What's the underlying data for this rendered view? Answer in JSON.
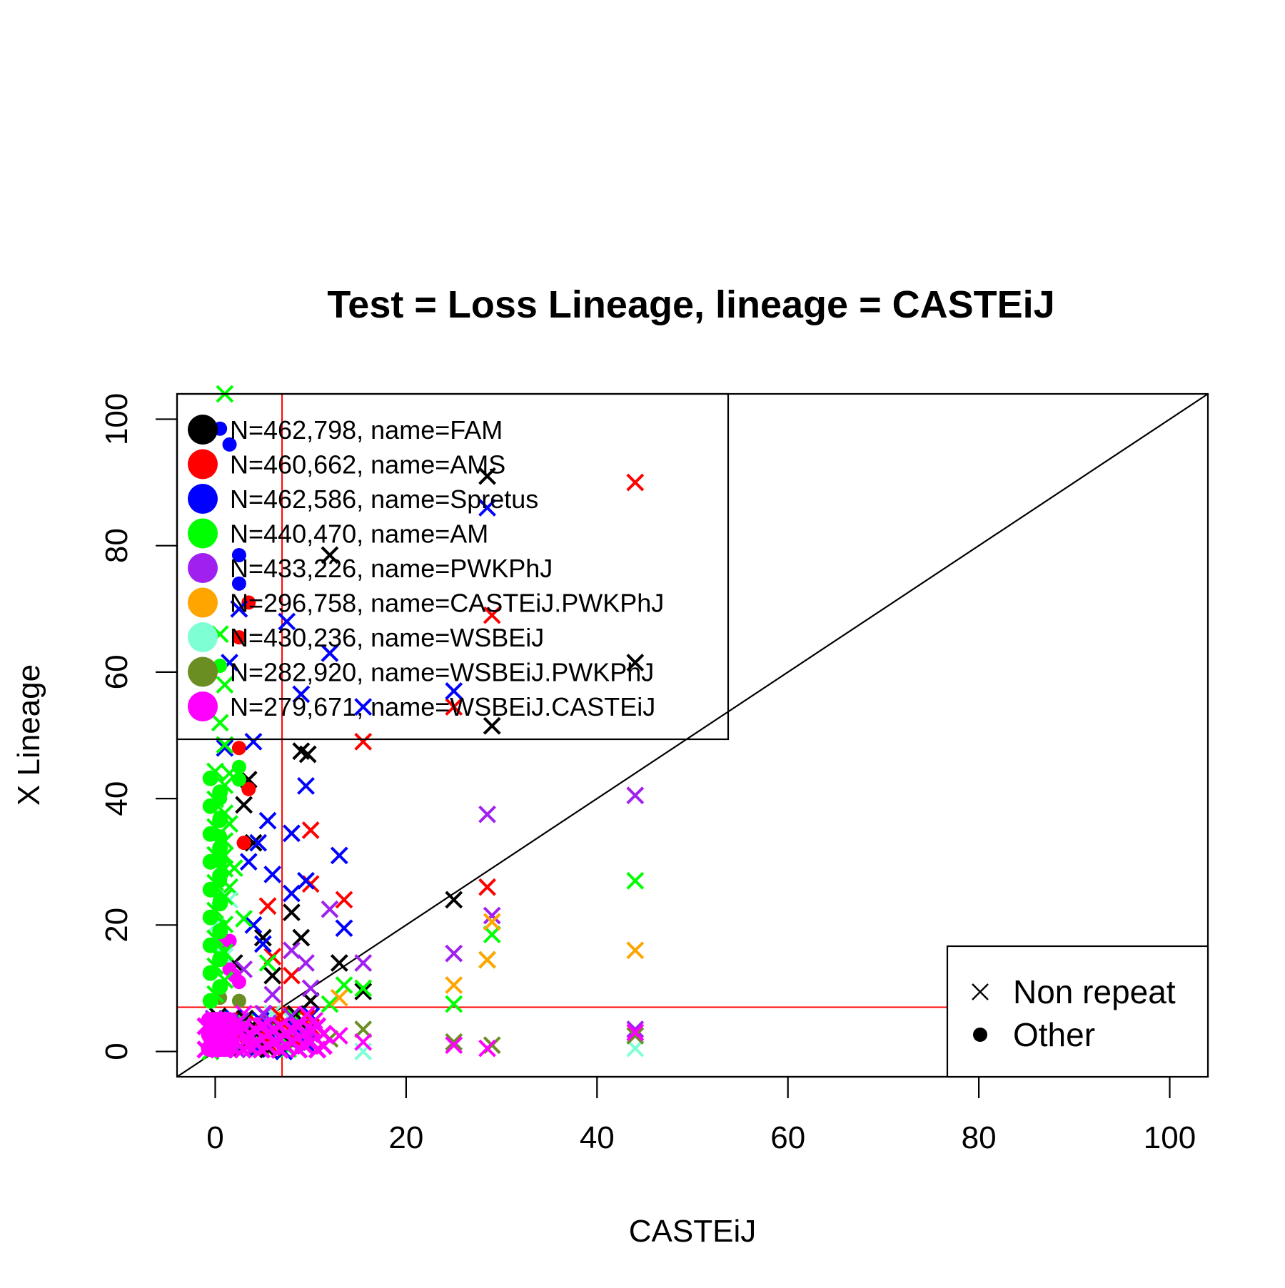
{
  "chart_data": {
    "type": "scatter",
    "title": "Test = Loss Lineage, lineage = CASTEiJ",
    "xlabel": "CASTEiJ",
    "ylabel": "X Lineage",
    "xlim": [
      -4,
      104
    ],
    "ylim": [
      -4,
      104
    ],
    "x_ticks": [
      0,
      20,
      40,
      60,
      80,
      100
    ],
    "y_ticks": [
      0,
      20,
      40,
      60,
      80,
      100
    ],
    "x_tick_labels": [
      "0",
      "20",
      "40",
      "60",
      "80",
      "100"
    ],
    "y_tick_labels": [
      "0",
      "20",
      "40",
      "60",
      "80",
      "100"
    ],
    "grid": false,
    "reference_lines": [
      {
        "kind": "diagonal",
        "intercept": 0,
        "slope": 1,
        "color": "#000000"
      },
      {
        "kind": "vertical",
        "x": 7,
        "color": "#ff0000"
      },
      {
        "kind": "horizontal",
        "y": 7,
        "color": "#ff0000"
      }
    ],
    "legend": {
      "placement": "top-left",
      "entries": [
        {
          "label": "N=462,798, name=FAM",
          "color": "#000000"
        },
        {
          "label": "N=460,662, name=AMS",
          "color": "#ff0000"
        },
        {
          "label": "N=462,586, name=Spretus",
          "color": "#0000ff"
        },
        {
          "label": "N=440,470, name=AM",
          "color": "#00ff00"
        },
        {
          "label": "N=433,226, name=PWKPhJ",
          "color": "#a020f0"
        },
        {
          "label": "N=296,758, name=CASTEiJ.PWKPhJ",
          "color": "#ffa500"
        },
        {
          "label": "N=430,236, name=WSBEiJ",
          "color": "#7fffd4"
        },
        {
          "label": "N=282,920, name=WSBEiJ.PWKPhJ",
          "color": "#6b8e23"
        },
        {
          "label": "N=279,671, name=WSBEiJ.CASTEiJ",
          "color": "#ff00ff"
        }
      ]
    },
    "shape_legend": {
      "placement": "bottom-right",
      "entries": [
        {
          "label": "Non repeat",
          "marker": "cross"
        },
        {
          "label": "Other",
          "marker": "dot"
        }
      ]
    },
    "series": [
      {
        "color": "#000000",
        "points": [
          {
            "x": 28.5,
            "y": 91,
            "m": "x"
          },
          {
            "x": 12,
            "y": 78.5,
            "m": "x"
          },
          {
            "x": 44,
            "y": 61.5,
            "m": "x"
          },
          {
            "x": 29,
            "y": 51.5,
            "m": "x"
          },
          {
            "x": 9,
            "y": 47.5,
            "m": "x"
          },
          {
            "x": 9.7,
            "y": 47,
            "m": "x"
          },
          {
            "x": 3,
            "y": 39,
            "m": "x"
          },
          {
            "x": 3.5,
            "y": 43,
            "m": "x"
          },
          {
            "x": 25,
            "y": 24,
            "m": "x"
          },
          {
            "x": 8,
            "y": 22,
            "m": "x"
          },
          {
            "x": 9,
            "y": 18,
            "m": "x"
          },
          {
            "x": 13,
            "y": 14,
            "m": "x"
          },
          {
            "x": 15.5,
            "y": 9.5,
            "m": "x"
          },
          {
            "x": 4,
            "y": 33,
            "m": "x"
          },
          {
            "x": 5,
            "y": 18,
            "m": "x"
          },
          {
            "x": 6,
            "y": 12,
            "m": "x"
          },
          {
            "x": 10,
            "y": 8,
            "m": "x"
          },
          {
            "x": 2,
            "y": 14,
            "m": "x"
          }
        ]
      },
      {
        "color": "#ff0000",
        "points": [
          {
            "x": 44,
            "y": 90,
            "m": "x"
          },
          {
            "x": 29,
            "y": 69,
            "m": "x"
          },
          {
            "x": 25,
            "y": 54.5,
            "m": "x"
          },
          {
            "x": 15.5,
            "y": 49,
            "m": "x"
          },
          {
            "x": 10,
            "y": 35,
            "m": "x"
          },
          {
            "x": 10,
            "y": 26.5,
            "m": "x"
          },
          {
            "x": 13.5,
            "y": 24,
            "m": "x"
          },
          {
            "x": 28.5,
            "y": 26,
            "m": "x"
          },
          {
            "x": 5.5,
            "y": 23,
            "m": "x"
          },
          {
            "x": 3.5,
            "y": 71,
            "m": "o"
          },
          {
            "x": 2.5,
            "y": 65.5,
            "m": "o"
          },
          {
            "x": 2.5,
            "y": 48,
            "m": "o"
          },
          {
            "x": 3.5,
            "y": 41.5,
            "m": "o"
          },
          {
            "x": 3,
            "y": 33,
            "m": "o"
          },
          {
            "x": 8,
            "y": 12,
            "m": "x"
          },
          {
            "x": 6,
            "y": 15,
            "m": "x"
          }
        ]
      },
      {
        "color": "#0000ff",
        "points": [
          {
            "x": 28.5,
            "y": 86,
            "m": "x"
          },
          {
            "x": 12,
            "y": 63,
            "m": "x"
          },
          {
            "x": 7.5,
            "y": 68,
            "m": "x"
          },
          {
            "x": 9,
            "y": 56.5,
            "m": "x"
          },
          {
            "x": 25,
            "y": 57,
            "m": "x"
          },
          {
            "x": 15.5,
            "y": 54.5,
            "m": "x"
          },
          {
            "x": 4,
            "y": 49,
            "m": "x"
          },
          {
            "x": 9.5,
            "y": 42,
            "m": "x"
          },
          {
            "x": 5.5,
            "y": 36.5,
            "m": "x"
          },
          {
            "x": 8,
            "y": 34.5,
            "m": "x"
          },
          {
            "x": 13,
            "y": 31,
            "m": "x"
          },
          {
            "x": 4.5,
            "y": 33,
            "m": "x"
          },
          {
            "x": 6,
            "y": 28,
            "m": "x"
          },
          {
            "x": 9.5,
            "y": 27,
            "m": "x"
          },
          {
            "x": 8,
            "y": 25,
            "m": "x"
          },
          {
            "x": 13.5,
            "y": 19.5,
            "m": "x"
          },
          {
            "x": 2.5,
            "y": 70,
            "m": "x"
          },
          {
            "x": 1.5,
            "y": 61.5,
            "m": "x"
          },
          {
            "x": 0.5,
            "y": 98.5,
            "m": "o"
          },
          {
            "x": 1.5,
            "y": 96,
            "m": "o"
          },
          {
            "x": 2.5,
            "y": 78.5,
            "m": "o"
          },
          {
            "x": 2.5,
            "y": 74,
            "m": "o"
          },
          {
            "x": 3.5,
            "y": 30,
            "m": "x"
          },
          {
            "x": 5,
            "y": 17,
            "m": "x"
          },
          {
            "x": 4,
            "y": 20,
            "m": "x"
          },
          {
            "x": 1,
            "y": 48,
            "m": "x"
          }
        ]
      },
      {
        "color": "#00ff00",
        "points": [
          {
            "x": 1,
            "y": 104,
            "m": "x"
          },
          {
            "x": 0.5,
            "y": 66,
            "m": "x"
          },
          {
            "x": 1,
            "y": 58,
            "m": "x"
          },
          {
            "x": 0.5,
            "y": 52,
            "m": "x"
          },
          {
            "x": 1,
            "y": 48.5,
            "m": "x"
          },
          {
            "x": 1.5,
            "y": 44,
            "m": "x"
          },
          {
            "x": 44,
            "y": 27,
            "m": "x"
          },
          {
            "x": 29,
            "y": 18.5,
            "m": "x"
          },
          {
            "x": 28.5,
            "y": 14.5,
            "m": "x"
          },
          {
            "x": 25,
            "y": 7.5,
            "m": "x"
          },
          {
            "x": 15.5,
            "y": 10,
            "m": "x"
          },
          {
            "x": 13.5,
            "y": 10.5,
            "m": "x"
          },
          {
            "x": 12,
            "y": 7.5,
            "m": "x"
          },
          {
            "x": 3,
            "y": 21,
            "m": "x"
          },
          {
            "x": 5.5,
            "y": 14,
            "m": "x"
          },
          {
            "x": 2.5,
            "y": 45,
            "m": "o"
          },
          {
            "x": 2.5,
            "y": 43,
            "m": "o"
          },
          {
            "x": 0.5,
            "y": 40,
            "m": "o"
          },
          {
            "x": 0.5,
            "y": 37,
            "m": "o"
          },
          {
            "x": 0.5,
            "y": 34,
            "m": "o"
          },
          {
            "x": 0.5,
            "y": 30,
            "m": "o"
          },
          {
            "x": 0.5,
            "y": 27,
            "m": "o"
          },
          {
            "x": 0.5,
            "y": 24,
            "m": "o"
          },
          {
            "x": 0.5,
            "y": 20,
            "m": "o"
          },
          {
            "x": 0.5,
            "y": 16,
            "m": "o"
          },
          {
            "x": 1.5,
            "y": 36,
            "m": "x"
          },
          {
            "x": 1,
            "y": 31,
            "m": "x"
          },
          {
            "x": 1.5,
            "y": 26,
            "m": "x"
          },
          {
            "x": 0.5,
            "y": 61,
            "m": "o"
          },
          {
            "x": 2,
            "y": 29,
            "m": "x"
          }
        ]
      },
      {
        "color": "#a020f0",
        "points": [
          {
            "x": 44,
            "y": 40.5,
            "m": "x"
          },
          {
            "x": 28.5,
            "y": 37.5,
            "m": "x"
          },
          {
            "x": 29,
            "y": 21.5,
            "m": "x"
          },
          {
            "x": 25,
            "y": 15.5,
            "m": "x"
          },
          {
            "x": 15.5,
            "y": 14,
            "m": "x"
          },
          {
            "x": 12,
            "y": 22.5,
            "m": "x"
          },
          {
            "x": 9.5,
            "y": 14,
            "m": "x"
          },
          {
            "x": 10,
            "y": 10,
            "m": "x"
          },
          {
            "x": 8,
            "y": 16,
            "m": "x"
          },
          {
            "x": 44,
            "y": 3.5,
            "m": "x"
          },
          {
            "x": 6,
            "y": 9,
            "m": "x"
          },
          {
            "x": 3,
            "y": 13,
            "m": "x"
          }
        ]
      },
      {
        "color": "#ffa500",
        "points": [
          {
            "x": 44,
            "y": 16,
            "m": "x"
          },
          {
            "x": 29,
            "y": 20.5,
            "m": "x"
          },
          {
            "x": 28.5,
            "y": 14.5,
            "m": "x"
          },
          {
            "x": 25,
            "y": 10.5,
            "m": "x"
          },
          {
            "x": 13,
            "y": 8.5,
            "m": "x"
          },
          {
            "x": 6,
            "y": 5,
            "m": "x"
          },
          {
            "x": 10,
            "y": 4,
            "m": "x"
          }
        ]
      },
      {
        "color": "#7fffd4",
        "points": [
          {
            "x": 44,
            "y": 0.5,
            "m": "x"
          },
          {
            "x": 15.5,
            "y": 0,
            "m": "x"
          },
          {
            "x": 1.5,
            "y": 24,
            "m": "x"
          },
          {
            "x": 1,
            "y": 15,
            "m": "x"
          },
          {
            "x": 0,
            "y": 20,
            "m": "x"
          },
          {
            "x": 6,
            "y": 6,
            "m": "x"
          },
          {
            "x": 8,
            "y": 5,
            "m": "x"
          }
        ]
      },
      {
        "color": "#6b8e23",
        "points": [
          {
            "x": 44,
            "y": 2.5,
            "m": "x"
          },
          {
            "x": 29,
            "y": 1,
            "m": "x"
          },
          {
            "x": 25,
            "y": 1.5,
            "m": "x"
          },
          {
            "x": 15.5,
            "y": 3.5,
            "m": "x"
          },
          {
            "x": 0.5,
            "y": 8.5,
            "m": "o"
          },
          {
            "x": 2.5,
            "y": 8,
            "m": "o"
          },
          {
            "x": 12,
            "y": 2,
            "m": "x"
          }
        ]
      },
      {
        "color": "#ff00ff",
        "points": [
          {
            "x": 44,
            "y": 3,
            "m": "x"
          },
          {
            "x": 28.5,
            "y": 0.5,
            "m": "x"
          },
          {
            "x": 25,
            "y": 1,
            "m": "x"
          },
          {
            "x": 15.5,
            "y": 1.5,
            "m": "x"
          },
          {
            "x": 13,
            "y": 2.5,
            "m": "x"
          },
          {
            "x": 10,
            "y": 3,
            "m": "x"
          },
          {
            "x": 0.5,
            "y": 17.5,
            "m": "o"
          },
          {
            "x": 1.5,
            "y": 17.5,
            "m": "o"
          },
          {
            "x": 1.5,
            "y": 13,
            "m": "o"
          },
          {
            "x": 2,
            "y": 12,
            "m": "o"
          },
          {
            "x": 2.5,
            "y": 11,
            "m": "o"
          },
          {
            "x": 8,
            "y": 2,
            "m": "x"
          },
          {
            "x": 6,
            "y": 3.5,
            "m": "x"
          },
          {
            "x": 4,
            "y": 4,
            "m": "x"
          },
          {
            "x": 3,
            "y": 6,
            "m": "x"
          },
          {
            "x": 5,
            "y": 6,
            "m": "x"
          }
        ]
      }
    ]
  }
}
